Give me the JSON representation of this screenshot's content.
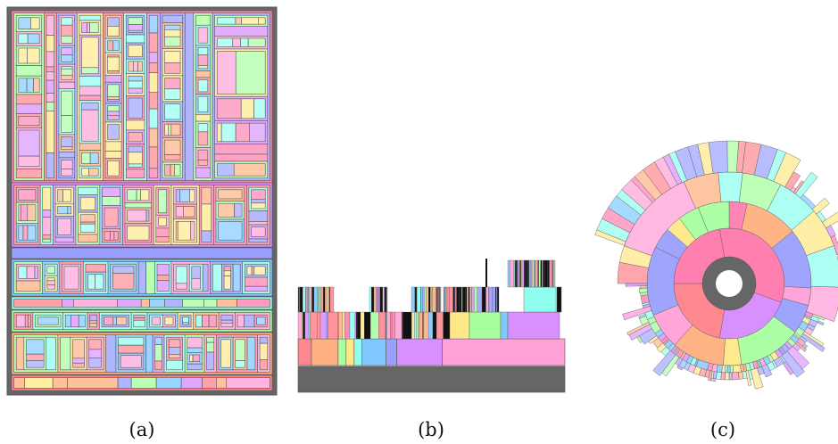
{
  "panels": [
    {
      "id": "a",
      "caption": "(a)",
      "kind": "treemap"
    },
    {
      "id": "b",
      "caption": "(b)",
      "kind": "icicle"
    },
    {
      "id": "c",
      "caption": "(c)",
      "kind": "sunburst"
    }
  ],
  "colors": {
    "root": "#666666",
    "outline": "#555555",
    "palette": [
      "#ff80b0",
      "#d890ff",
      "#9aa0ff",
      "#80c8ff",
      "#90ffee",
      "#a8ffa0",
      "#ffe888",
      "#ffb080",
      "#ff8890",
      "#ffa0d8"
    ]
  }
}
